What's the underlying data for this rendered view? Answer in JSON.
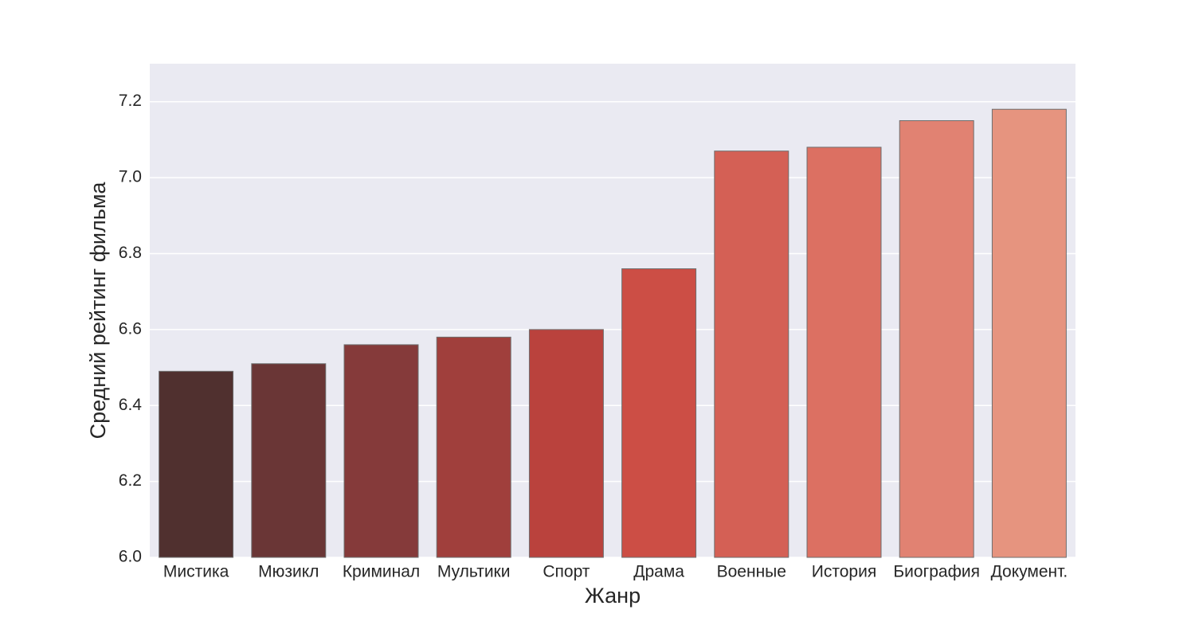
{
  "chart_data": {
    "type": "bar",
    "x_label": "Жанр",
    "y_label": "Средний рейтинг фильма",
    "categories": [
      "Мистика",
      "Мюзикл",
      "Криминал",
      "Мультики",
      "Спорт",
      "Драма",
      "Военные",
      "История",
      "Биография",
      "Документ."
    ],
    "values": [
      6.49,
      6.51,
      6.56,
      6.58,
      6.6,
      6.76,
      7.07,
      7.08,
      7.15,
      7.18
    ],
    "colors": [
      "#50302f",
      "#6a3636",
      "#853a3a",
      "#a03f3c",
      "#ba423d",
      "#cc4e45",
      "#d46055",
      "#dc7062",
      "#e18272",
      "#e6947f"
    ],
    "ylim": [
      6.0,
      7.3
    ],
    "yticks": [
      {
        "value": 6,
        "label": "6.0"
      },
      6.2,
      6.4,
      6.6,
      6.8,
      {
        "value": 7,
        "label": "7.0"
      },
      7.2
    ],
    "grid": true
  }
}
